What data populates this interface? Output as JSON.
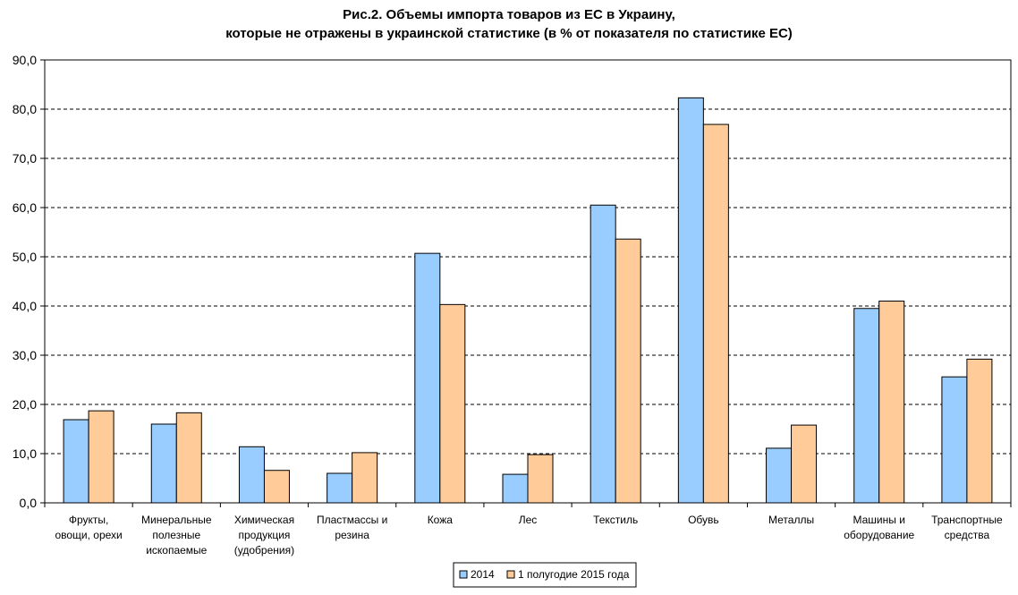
{
  "chart_data": {
    "type": "bar",
    "title_line1": "Рис.2. Объемы импорта товаров из ЕС в Украину,",
    "title_line2": "которые не отражены в украинской статистике (в % от показателя по статистике ЕС)",
    "xlabel": "",
    "ylabel": "",
    "ylim": [
      0,
      90
    ],
    "yticks": [
      "0,0",
      "10,0",
      "20,0",
      "30,0",
      "40,0",
      "50,0",
      "60,0",
      "70,0",
      "80,0",
      "90,0"
    ],
    "grid": true,
    "legend_position": "bottom-center",
    "categories": [
      [
        "Фрукты,",
        "овощи, орехи"
      ],
      [
        "Минеральные",
        "полезные",
        "ископаемые"
      ],
      [
        "Химическая",
        "продукция",
        "(удобрения)"
      ],
      [
        "Пластмассы и",
        "резина"
      ],
      [
        "Кожа"
      ],
      [
        "Лес"
      ],
      [
        "Текстиль"
      ],
      [
        "Обувь"
      ],
      [
        "Металлы"
      ],
      [
        "Машины и",
        "оборудование"
      ],
      [
        "Транспортные",
        "средства"
      ]
    ],
    "series": [
      {
        "name": "2014",
        "color": "#99CCFF",
        "values": [
          16.9,
          16.0,
          11.4,
          6.0,
          50.7,
          5.8,
          60.5,
          82.3,
          11.1,
          39.5,
          25.6
        ]
      },
      {
        "name": "1 полугодие 2015 года",
        "color": "#FFCC99",
        "values": [
          18.7,
          18.3,
          6.6,
          10.2,
          40.3,
          9.8,
          53.6,
          76.9,
          15.8,
          41.0,
          29.2
        ]
      }
    ]
  }
}
